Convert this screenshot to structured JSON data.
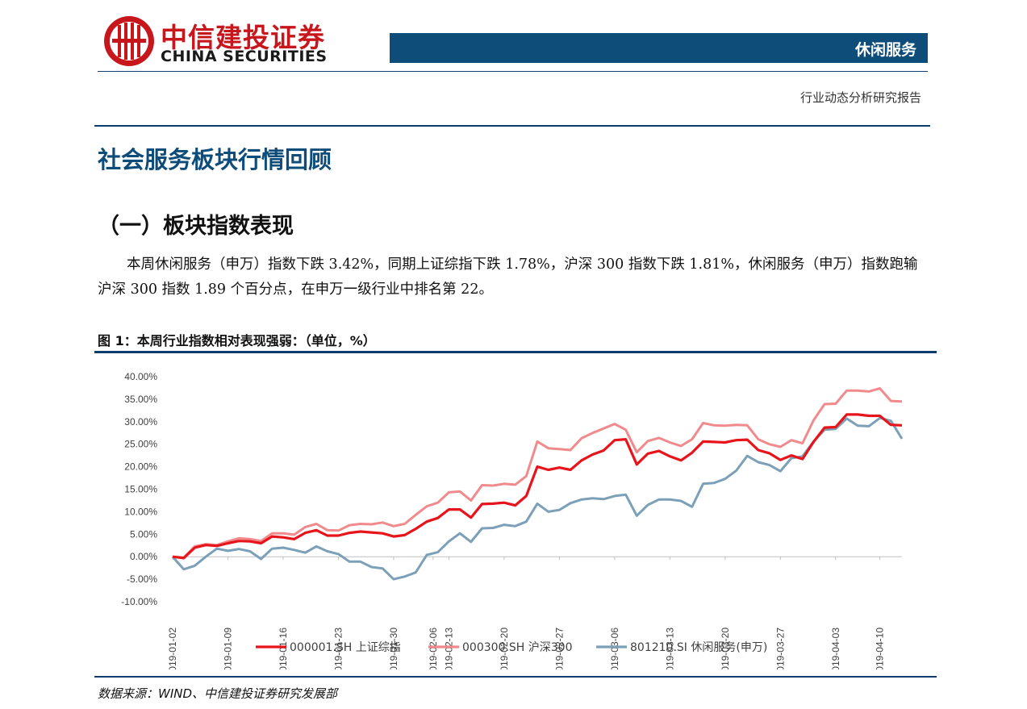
{
  "header": {
    "brand_cn": "中信建投证券",
    "brand_en": "CHINA SECURITIES",
    "brand_color": "#c8161d",
    "sector": "休闲服务",
    "report_type": "行业动态分析研究报告"
  },
  "section": {
    "title": "社会服务板块行情回顾",
    "subtitle": "（一）板块指数表现",
    "paragraph": "本周休闲服务（申万）指数下跌 3.42%，同期上证综指下跌 1.78%，沪深 300 指数下跌 1.81%，休闲服务（申万）指数跑输沪深 300 指数 1.89 个百分点，在申万一级行业中排名第 22。"
  },
  "figure": {
    "title": "图 1：本周行业指数相对表现强弱：（单位，%）",
    "source": "数据来源：WIND、中信建投证券研究发展部"
  },
  "chart_data": {
    "type": "line",
    "x": [
      "2019-01-02",
      "2019-01-03",
      "2019-01-04",
      "2019-01-07",
      "2019-01-08",
      "2019-01-09",
      "2019-01-10",
      "2019-01-11",
      "2019-01-14",
      "2019-01-15",
      "2019-01-16",
      "2019-01-17",
      "2019-01-18",
      "2019-01-21",
      "2019-01-22",
      "2019-01-23",
      "2019-01-24",
      "2019-01-25",
      "2019-01-28",
      "2019-01-29",
      "2019-01-30",
      "2019-01-31",
      "2019-02-01",
      "2019-02-11",
      "2019-02-12",
      "2019-02-13",
      "2019-02-14",
      "2019-02-15",
      "2019-02-18",
      "2019-02-19",
      "2019-02-20",
      "2019-02-21",
      "2019-02-22",
      "2019-02-25",
      "2019-02-26",
      "2019-02-27",
      "2019-02-28",
      "2019-03-01",
      "2019-03-04",
      "2019-03-05",
      "2019-03-06",
      "2019-03-07",
      "2019-03-08",
      "2019-03-11",
      "2019-03-12",
      "2019-03-13",
      "2019-03-14",
      "2019-03-15",
      "2019-03-18",
      "2019-03-19",
      "2019-03-20",
      "2019-03-21",
      "2019-03-22",
      "2019-03-25",
      "2019-03-26",
      "2019-03-27",
      "2019-03-28",
      "2019-03-29",
      "2019-04-01",
      "2019-04-02",
      "2019-04-03",
      "2019-04-04",
      "2019-04-08",
      "2019-04-09",
      "2019-04-10",
      "2019-04-11",
      "2019-04-12"
    ],
    "x_ticks": [
      "2019-01-02",
      "2019-01-09",
      "2019-01-16",
      "2019-01-23",
      "2019-01-30",
      "2019-02-06",
      "2019-02-13",
      "2019-02-20",
      "2019-02-27",
      "2019-03-06",
      "2019-03-13",
      "2019-03-20",
      "2019-03-27",
      "2019-04-03",
      "2019-04-10"
    ],
    "ylim": [
      -10,
      40
    ],
    "y_ticks": [
      "40.00%",
      "35.00%",
      "30.00%",
      "25.00%",
      "20.00%",
      "15.00%",
      "10.00%",
      "5.00%",
      "0.00%",
      "-5.00%",
      "-10.00%"
    ],
    "series": [
      {
        "name": "000001.SH 上证综指",
        "color": "#e8141b",
        "values": [
          0,
          -0.3,
          2.0,
          2.6,
          2.4,
          3.0,
          3.5,
          3.4,
          3.0,
          4.5,
          4.3,
          3.9,
          5.3,
          5.9,
          4.7,
          4.7,
          5.3,
          5.6,
          5.4,
          5.2,
          4.5,
          4.8,
          6.2,
          7.8,
          8.6,
          10.5,
          10.5,
          8.7,
          11.7,
          11.8,
          12.0,
          11.4,
          13.5,
          20.0,
          19.3,
          19.8,
          19.3,
          21.4,
          22.7,
          23.6,
          25.9,
          26.1,
          20.5,
          22.9,
          23.5,
          22.3,
          21.4,
          23.1,
          25.6,
          25.5,
          25.4,
          25.9,
          26.0,
          23.7,
          23.0,
          21.5,
          22.5,
          21.7,
          25.5,
          28.7,
          28.8,
          31.6,
          31.6,
          31.3,
          31.3,
          29.3,
          29.2
        ]
      },
      {
        "name": "000300.SH 沪深300",
        "color": "#f08a8c",
        "values": [
          0,
          -0.2,
          2.3,
          2.8,
          2.6,
          3.4,
          4.1,
          3.9,
          3.5,
          5.2,
          5.2,
          4.9,
          6.6,
          7.3,
          5.9,
          5.8,
          7.0,
          7.3,
          7.2,
          7.6,
          6.8,
          7.3,
          9.3,
          11.2,
          12.0,
          14.3,
          14.5,
          12.5,
          15.9,
          15.8,
          16.2,
          16.0,
          17.9,
          25.6,
          24.1,
          23.9,
          23.7,
          26.3,
          27.5,
          28.5,
          29.5,
          28.2,
          23.2,
          25.7,
          26.4,
          25.4,
          24.6,
          26.1,
          29.7,
          29.2,
          29.1,
          29.3,
          29.2,
          26.1,
          25.0,
          24.4,
          25.9,
          25.2,
          30.3,
          33.9,
          34.0,
          36.9,
          36.9,
          36.7,
          37.4,
          34.6,
          34.5
        ]
      },
      {
        "name": "801210.SI 休闲服务(申万)",
        "color": "#7ba0b8",
        "values": [
          0,
          -2.8,
          -2.0,
          0,
          1.8,
          1.3,
          1.7,
          1.2,
          -0.5,
          1.8,
          2.0,
          1.5,
          0.9,
          2.3,
          1.2,
          0.6,
          -1.1,
          -1.1,
          -2.3,
          -2.6,
          -5.0,
          -4.4,
          -3.5,
          0.4,
          1.0,
          3.4,
          5.2,
          3.3,
          6.3,
          6.4,
          7.1,
          6.8,
          7.8,
          11.8,
          10.0,
          10.4,
          11.9,
          12.7,
          13.0,
          12.8,
          13.5,
          13.8,
          9.1,
          11.5,
          12.7,
          12.7,
          12.4,
          11.1,
          16.2,
          16.4,
          17.3,
          19.1,
          22.4,
          21.0,
          20.4,
          19.0,
          21.9,
          22.3,
          25.6,
          28.2,
          28.4,
          30.7,
          29.1,
          29.0,
          30.8,
          30.2,
          26.2
        ]
      }
    ],
    "legend_position": "bottom",
    "grid": false
  }
}
